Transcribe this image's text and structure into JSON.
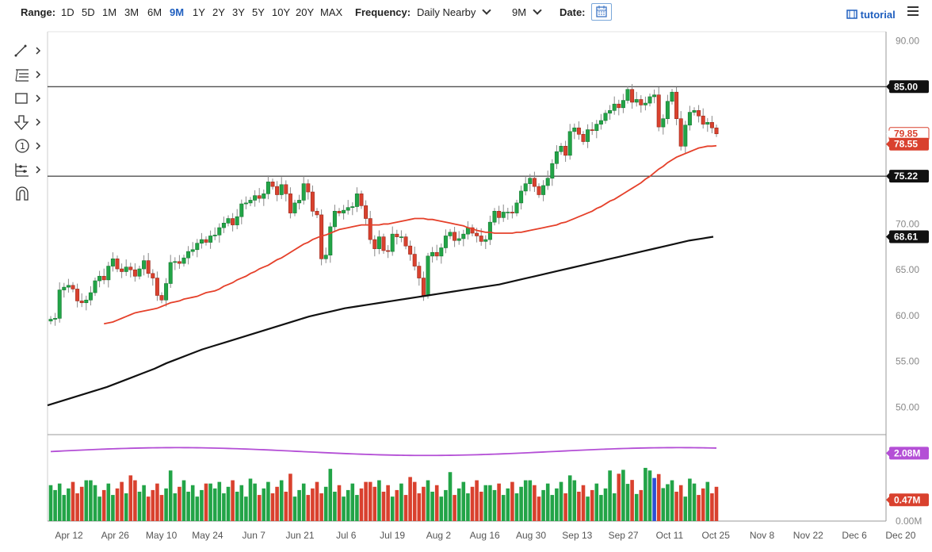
{
  "toolbar": {
    "range_label": "Range:",
    "ranges": [
      "1D",
      "5D",
      "1M",
      "3M",
      "6M",
      "9M",
      "1Y",
      "2Y",
      "3Y",
      "5Y",
      "10Y",
      "20Y",
      "MAX"
    ],
    "active_range": "9M",
    "frequency_label": "Frequency:",
    "frequency_value": "Daily Nearby",
    "period_value": "9M",
    "date_label": "Date:",
    "tutorial_label": "tutorial"
  },
  "side_tools": [
    "line-tool-icon",
    "fib-tool-icon",
    "rectangle-tool-icon",
    "arrow-down-tool-icon",
    "number-tool-icon",
    "measure-tool-icon",
    "magnet-icon"
  ],
  "colors": {
    "up": "#22a447",
    "down": "#d9412e",
    "ma50": "#e5402a",
    "ma200": "#111111",
    "vol_avg": "#b44fd6",
    "vol_highlight": "#2c4fd6"
  },
  "chart_data": {
    "type": "candlestick",
    "ylim": [
      47,
      91
    ],
    "yticks": [
      "90.00",
      "85.00",
      "80.00",
      "75.00",
      "70.00",
      "65.00",
      "60.00",
      "55.00",
      "50.00"
    ],
    "xticks": [
      "Apr 12",
      "Apr 26",
      "May 10",
      "May 24",
      "Jun 7",
      "Jun 21",
      "Jul 6",
      "Jul 19",
      "Aug 2",
      "Aug 16",
      "Aug 30",
      "Sep 13",
      "Sep 27",
      "Oct 11",
      "Oct 25",
      "Nov 8",
      "Nov 22",
      "Dec 6",
      "Dec 20"
    ],
    "price_tags": {
      "last": "79.85",
      "ma50": "78.55",
      "ma200": "68.61",
      "line_upper": "85.00",
      "line_lower": "75.22"
    },
    "horizontal_lines": [
      85.0,
      75.22
    ],
    "closes": [
      59.6,
      59.7,
      62.8,
      63.1,
      63.3,
      62.9,
      61.6,
      61.4,
      61.7,
      62.5,
      63.8,
      64.3,
      63.9,
      65.4,
      66.2,
      65.1,
      64.8,
      65.3,
      65.0,
      64.3,
      65.1,
      66.0,
      64.6,
      64.1,
      62.2,
      61.7,
      63.5,
      65.8,
      65.9,
      65.7,
      66.3,
      67.0,
      67.2,
      67.9,
      68.3,
      68.0,
      68.7,
      68.8,
      69.6,
      70.1,
      70.6,
      69.9,
      70.8,
      72.2,
      72.3,
      72.6,
      73.1,
      72.8,
      73.3,
      74.6,
      74.1,
      73.2,
      74.3,
      73.3,
      71.2,
      72.3,
      72.6,
      74.4,
      73.5,
      71.4,
      71.0,
      66.2,
      66.6,
      69.7,
      71.4,
      71.2,
      71.5,
      71.8,
      71.9,
      73.3,
      72.0,
      70.6,
      68.3,
      67.3,
      68.6,
      67.1,
      67.0,
      68.9,
      68.6,
      68.6,
      67.6,
      66.7,
      65.4,
      64.1,
      62.2,
      66.5,
      66.9,
      66.5,
      67.4,
      68.7,
      69.1,
      68.2,
      68.4,
      68.9,
      69.6,
      69.0,
      68.7,
      68.1,
      68.3,
      70.2,
      71.4,
      70.7,
      71.3,
      71.3,
      71.2,
      72.3,
      73.6,
      74.4,
      75.0,
      74.1,
      73.2,
      74.2,
      75.0,
      76.6,
      77.9,
      78.5,
      77.5,
      80.1,
      80.5,
      79.8,
      79.0,
      80.3,
      80.2,
      80.9,
      81.3,
      82.1,
      82.4,
      83.1,
      82.7,
      83.5,
      84.7,
      83.3,
      83.6,
      83.0,
      83.2,
      83.9,
      84.1,
      80.6,
      81.5,
      83.4,
      84.4,
      81.5,
      78.5,
      80.8,
      82.2,
      82.4,
      81.8,
      80.9,
      81.1,
      80.5,
      79.85
    ],
    "ma50": [
      59.1,
      59.2,
      59.3,
      59.5,
      59.7,
      59.9,
      60.1,
      60.3,
      60.4,
      60.5,
      60.6,
      60.7,
      60.8,
      61.0,
      61.2,
      61.4,
      61.5,
      61.6,
      61.8,
      61.9,
      62.0,
      62.1,
      62.3,
      62.5,
      62.6,
      62.7,
      62.9,
      63.2,
      63.4,
      63.6,
      63.9,
      64.1,
      64.3,
      64.6,
      64.8,
      65.1,
      65.3,
      65.5,
      65.8,
      66.1,
      66.3,
      66.6,
      66.9,
      67.2,
      67.5,
      67.8,
      68.0,
      68.3,
      68.5,
      68.7,
      68.8,
      69.0,
      69.2,
      69.4,
      69.5,
      69.6,
      69.7,
      69.8,
      69.9,
      69.9,
      69.9,
      69.9,
      69.9,
      70.0,
      70.0,
      70.1,
      70.2,
      70.3,
      70.4,
      70.5,
      70.6,
      70.6,
      70.6,
      70.5,
      70.5,
      70.4,
      70.3,
      70.2,
      70.1,
      70.0,
      69.9,
      69.8,
      69.6,
      69.5,
      69.3,
      69.2,
      69.1,
      69.1,
      69.0,
      69.0,
      69.0,
      69.0,
      69.0,
      69.1,
      69.1,
      69.2,
      69.3,
      69.4,
      69.5,
      69.6,
      69.7,
      69.8,
      69.9,
      70.1,
      70.2,
      70.4,
      70.6,
      70.8,
      71.0,
      71.2,
      71.4,
      71.7,
      71.9,
      72.2,
      72.5,
      72.7,
      73.0,
      73.3,
      73.6,
      73.9,
      74.2,
      74.5,
      74.9,
      75.2,
      75.6,
      76.0,
      76.3,
      76.7,
      77.0,
      77.3,
      77.5,
      77.7,
      77.9,
      78.1,
      78.3,
      78.4,
      78.5,
      78.5,
      78.55
    ],
    "ma200": [
      50.2,
      50.6,
      51.0,
      51.4,
      51.8,
      52.2,
      52.7,
      53.2,
      53.7,
      54.2,
      54.8,
      55.3,
      55.8,
      56.3,
      56.7,
      57.1,
      57.5,
      57.9,
      58.3,
      58.7,
      59.1,
      59.5,
      59.9,
      60.2,
      60.5,
      60.8,
      61.0,
      61.2,
      61.4,
      61.6,
      61.8,
      62.0,
      62.2,
      62.4,
      62.6,
      62.8,
      63.0,
      63.2,
      63.4,
      63.7,
      64.0,
      64.3,
      64.6,
      64.9,
      65.2,
      65.5,
      65.8,
      66.1,
      66.4,
      66.7,
      67.0,
      67.3,
      67.6,
      67.9,
      68.2,
      68.4,
      68.61
    ],
    "volume_axis": [
      "2.08M",
      "0.47M",
      "0.00M"
    ],
    "volume_avg": 2.08,
    "volume_ylim": [
      0,
      2.6
    ]
  }
}
